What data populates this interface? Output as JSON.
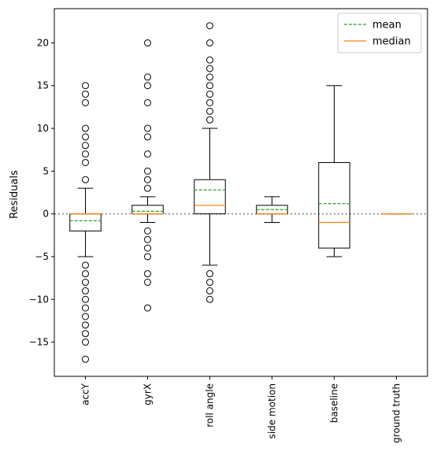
{
  "chart_data": {
    "type": "box",
    "ylabel": "Residuals",
    "ylim": [
      -19,
      24
    ],
    "yticks": [
      -15,
      -10,
      -5,
      0,
      5,
      10,
      15,
      20
    ],
    "reference_line": {
      "y": 0,
      "style": "dotted",
      "color": "#808080"
    },
    "legend": {
      "position": "top-right",
      "entries": [
        {
          "label": "mean",
          "style": "dashed",
          "color": "#2ca02c"
        },
        {
          "label": "median",
          "style": "solid",
          "color": "#ff7f0e"
        }
      ]
    },
    "categories": [
      "accY",
      "gyrX",
      "roll angle",
      "side motion",
      "baseline",
      "ground truth"
    ],
    "boxes": [
      {
        "label": "accY",
        "whisker_low": -5,
        "q1": -2,
        "median": 0,
        "q3": 0,
        "whisker_high": 3,
        "mean": -0.8,
        "outliers": [
          15,
          14,
          13,
          10,
          9,
          8,
          7,
          6,
          4,
          -6,
          -7,
          -8,
          -9,
          -10,
          -11,
          -12,
          -13,
          -14,
          -15,
          -17
        ]
      },
      {
        "label": "gyrX",
        "whisker_low": -1,
        "q1": 0,
        "median": 0,
        "q3": 1,
        "whisker_high": 2,
        "mean": 0.3,
        "outliers": [
          20,
          16,
          15,
          13,
          10,
          9,
          7,
          5,
          4,
          3,
          -2,
          -3,
          -4,
          -5,
          -7,
          -8,
          -11
        ]
      },
      {
        "label": "roll angle",
        "whisker_low": -6,
        "q1": 0,
        "median": 1,
        "q3": 4,
        "whisker_high": 10,
        "mean": 2.8,
        "outliers": [
          22,
          20,
          18,
          17,
          16,
          15,
          14,
          13,
          12,
          11,
          -7,
          -8,
          -9,
          -10
        ]
      },
      {
        "label": "side motion",
        "whisker_low": -1,
        "q1": 0,
        "median": 0,
        "q3": 1,
        "whisker_high": 2,
        "mean": 0.5,
        "outliers": []
      },
      {
        "label": "baseline",
        "whisker_low": -5,
        "q1": -4,
        "median": -1,
        "q3": 6,
        "whisker_high": 15,
        "mean": 1.2,
        "outliers": []
      },
      {
        "label": "ground truth",
        "whisker_low": 0,
        "q1": 0,
        "median": 0,
        "q3": 0,
        "whisker_high": 0,
        "mean": 0,
        "outliers": []
      }
    ]
  }
}
